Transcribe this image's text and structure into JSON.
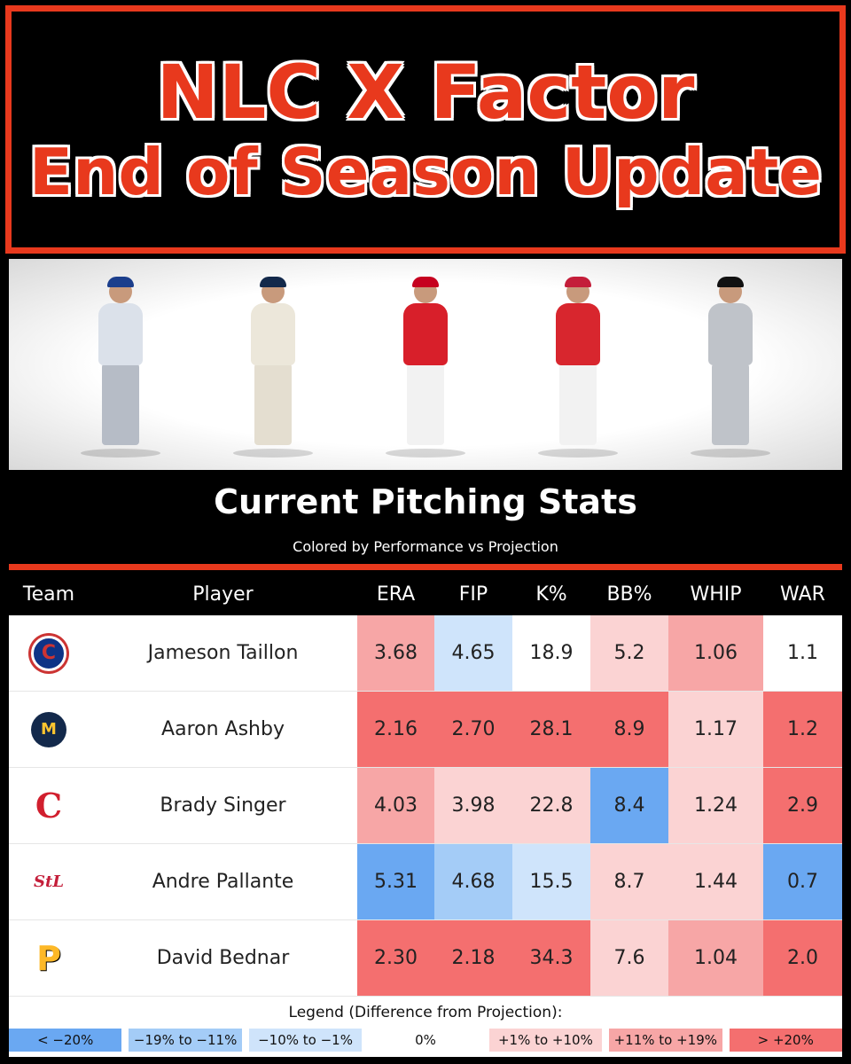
{
  "title": {
    "line1": "NLC X Factor",
    "line2": "End of Season Update"
  },
  "section": {
    "title": "Current Pitching Stats",
    "subtitle": "Colored by Performance vs Projection"
  },
  "headers": {
    "team": "Team",
    "player": "Player",
    "era": "ERA",
    "fip": "FIP",
    "k": "K%",
    "bb": "BB%",
    "whip": "WHIP",
    "war": "WAR"
  },
  "figures": [
    {
      "icon": "cubs-pitcher-photo",
      "cap": "#1b3e8c",
      "top": "#dbe1ea",
      "pants": "#b6bcc6"
    },
    {
      "icon": "brewers-pitcher-photo",
      "cap": "#13294b",
      "top": "#ece7da",
      "pants": "#e4ded0"
    },
    {
      "icon": "reds-pitcher-photo",
      "cap": "#c6011f",
      "top": "#d81f2a",
      "pants": "#f2f2f2"
    },
    {
      "icon": "cardinals-pitcher-photo",
      "cap": "#c41e3a",
      "top": "#d8262e",
      "pants": "#f2f2f2"
    },
    {
      "icon": "pirates-pitcher-photo",
      "cap": "#111111",
      "top": "#bfc3c9",
      "pants": "#bfc3c9"
    }
  ],
  "rows": [
    {
      "team_icon": "cubs-logo-icon",
      "logo": "logo-cubs",
      "player": "Jameson Taillon",
      "era": "3.68",
      "fip": "4.65",
      "k": "18.9",
      "bb": "5.2",
      "whip": "1.06",
      "war": "1.1",
      "colors": {
        "era": "#f7a6a6",
        "fip": "#cfe4fb",
        "k": "#ffffff",
        "bb": "#fbd3d3",
        "whip": "#f7a6a6",
        "war": "#ffffff"
      }
    },
    {
      "team_icon": "brewers-logo-icon",
      "logo": "logo-brewers",
      "player": "Aaron Ashby",
      "era": "2.16",
      "fip": "2.70",
      "k": "28.1",
      "bb": "8.9",
      "whip": "1.17",
      "war": "1.2",
      "colors": {
        "era": "#f46f6f",
        "fip": "#f46f6f",
        "k": "#f46f6f",
        "bb": "#f46f6f",
        "whip": "#fbd3d3",
        "war": "#f46f6f"
      }
    },
    {
      "team_icon": "reds-logo-icon",
      "logo": "logo-reds",
      "player": "Brady Singer",
      "era": "4.03",
      "fip": "3.98",
      "k": "22.8",
      "bb": "8.4",
      "whip": "1.24",
      "war": "2.9",
      "colors": {
        "era": "#f7a6a6",
        "fip": "#fbd3d3",
        "k": "#fbd3d3",
        "bb": "#6aa8f2",
        "whip": "#fbd3d3",
        "war": "#f46f6f"
      }
    },
    {
      "team_icon": "cardinals-logo-icon",
      "logo": "logo-cards",
      "player": "Andre Pallante",
      "era": "5.31",
      "fip": "4.68",
      "k": "15.5",
      "bb": "8.7",
      "whip": "1.44",
      "war": "0.7",
      "colors": {
        "era": "#6aa8f2",
        "fip": "#a4ccf7",
        "k": "#cfe4fb",
        "bb": "#fbd3d3",
        "whip": "#fbd3d3",
        "war": "#6aa8f2"
      }
    },
    {
      "team_icon": "pirates-logo-icon",
      "logo": "logo-pirates",
      "player": "David Bednar",
      "era": "2.30",
      "fip": "2.18",
      "k": "34.3",
      "bb": "7.6",
      "whip": "1.04",
      "war": "2.0",
      "colors": {
        "era": "#f46f6f",
        "fip": "#f46f6f",
        "k": "#f46f6f",
        "bb": "#fbd3d3",
        "whip": "#f7a6a6",
        "war": "#f46f6f"
      }
    }
  ],
  "legend": {
    "title": "Legend (Difference from Projection):",
    "items": [
      {
        "label": "< −20%",
        "color": "#6aa8f2"
      },
      {
        "label": "−19% to −11%",
        "color": "#a4ccf7"
      },
      {
        "label": "−10% to −1%",
        "color": "#cfe4fb"
      },
      {
        "label": "0%",
        "color": "#ffffff"
      },
      {
        "label": "+1% to +10%",
        "color": "#fbd3d3"
      },
      {
        "label": "+11% to +19%",
        "color": "#f7a6a6"
      },
      {
        "label": "> +20%",
        "color": "#f46f6f"
      }
    ]
  }
}
